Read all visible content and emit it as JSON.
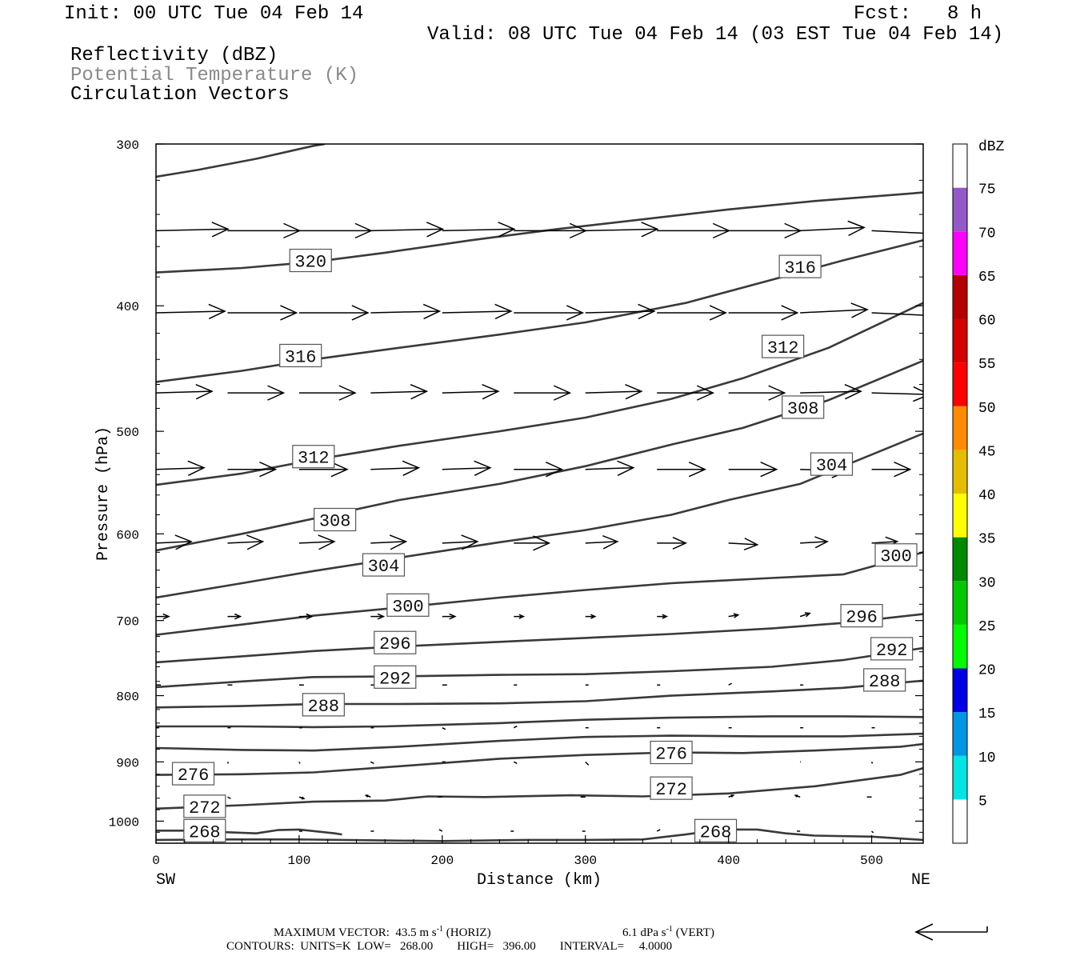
{
  "header": {
    "init": "Init: 00 UTC Tue 04 Feb 14",
    "fcst_label": "Fcst:",
    "fcst_value": "8 h",
    "valid": "Valid: 08 UTC Tue 04 Feb 14 (03 EST Tue 04 Feb 14)",
    "field1": "Reflectivity (dBZ)",
    "field2": "Potential Temperature (K)",
    "field3": "Circulation Vectors"
  },
  "footer": {
    "max_vector_label": "MAXIMUM VECTOR:",
    "max_vector_horiz": "43.5 m s",
    "horiz_exp": "-1",
    "horiz_tag": "(HORIZ)",
    "max_vector_vert": "6.1 dPa s",
    "vert_exp": "-1",
    "vert_tag": "(VERT)",
    "contours": "CONTOURS:  UNITS=K  LOW=   268.00        HIGH=   396.00        INTERVAL=     4.0000"
  },
  "colors": {
    "contour": "#3a3a3a",
    "vector": "#000000",
    "potential_temperature_label": "#8a8a8a"
  },
  "chart_data": {
    "type": "cross-section",
    "xlabel": "Distance (km)",
    "ylabel": "Pressure (hPa)",
    "xlim": [
      0,
      536
    ],
    "ylim": [
      1040,
      300
    ],
    "y_log": true,
    "x_ticks": [
      0,
      100,
      200,
      300,
      400,
      500
    ],
    "y_ticks": [
      300,
      400,
      500,
      600,
      700,
      800,
      900,
      1000
    ],
    "left_end_label": "SW",
    "right_end_label": "NE",
    "colorbar": {
      "title": "dBZ",
      "labels": [
        "5",
        "10",
        "15",
        "20",
        "25",
        "30",
        "35",
        "40",
        "45",
        "50",
        "55",
        "60",
        "65",
        "70",
        "75"
      ],
      "colors": [
        "#ffffff",
        "#00e4e4",
        "#0096e4",
        "#0000e6",
        "#00fb00",
        "#00c800",
        "#008a00",
        "#ffff00",
        "#e6bc00",
        "#ff8c00",
        "#ff0000",
        "#d40000",
        "#b40000",
        "#ff00ff",
        "#9558c8",
        "#ffffff"
      ]
    },
    "theta_contours": [
      {
        "value": 320,
        "points": [
          [
            0,
            318
          ],
          [
            30,
            314
          ],
          [
            70,
            308
          ],
          [
            110,
            301
          ],
          [
            118,
            300
          ]
        ]
      },
      {
        "value": 320,
        "points": [
          [
            0,
            377
          ],
          [
            60,
            374
          ],
          [
            110,
            370
          ],
          [
            160,
            364
          ],
          [
            220,
            356
          ],
          [
            280,
            349
          ],
          [
            340,
            343
          ],
          [
            400,
            337
          ],
          [
            460,
            332
          ],
          [
            536,
            327
          ]
        ]
      },
      {
        "value": 316,
        "points": [
          [
            0,
            458
          ],
          [
            60,
            449
          ],
          [
            110,
            440
          ],
          [
            170,
            431
          ],
          [
            240,
            421
          ],
          [
            300,
            412
          ],
          [
            370,
            398
          ],
          [
            430,
            382
          ],
          [
            480,
            369
          ],
          [
            536,
            356
          ]
        ]
      },
      {
        "value": 312,
        "points": [
          [
            0,
            550
          ],
          [
            60,
            539
          ],
          [
            110,
            526
          ],
          [
            170,
            513
          ],
          [
            240,
            500
          ],
          [
            300,
            488
          ],
          [
            360,
            472
          ],
          [
            410,
            455
          ],
          [
            470,
            431
          ],
          [
            536,
            398
          ]
        ]
      },
      {
        "value": 308,
        "points": [
          [
            0,
            618
          ],
          [
            60,
            600
          ],
          [
            110,
            584
          ],
          [
            170,
            565
          ],
          [
            240,
            549
          ],
          [
            300,
            532
          ],
          [
            360,
            512
          ],
          [
            410,
            497
          ],
          [
            470,
            473
          ],
          [
            536,
            441
          ]
        ]
      },
      {
        "value": 304,
        "points": [
          [
            0,
            672
          ],
          [
            60,
            655
          ],
          [
            110,
            641
          ],
          [
            170,
            626
          ],
          [
            240,
            609
          ],
          [
            300,
            596
          ],
          [
            360,
            580
          ],
          [
            400,
            565
          ],
          [
            450,
            549
          ],
          [
            536,
            502
          ]
        ]
      },
      {
        "value": 300,
        "points": [
          [
            0,
            718
          ],
          [
            60,
            705
          ],
          [
            110,
            694
          ],
          [
            170,
            684
          ],
          [
            240,
            672
          ],
          [
            300,
            663
          ],
          [
            360,
            655
          ],
          [
            430,
            649
          ],
          [
            480,
            645
          ],
          [
            536,
            620
          ]
        ]
      },
      {
        "value": 296,
        "points": [
          [
            0,
            754
          ],
          [
            60,
            746
          ],
          [
            110,
            739
          ],
          [
            170,
            733
          ],
          [
            240,
            727
          ],
          [
            300,
            722
          ],
          [
            360,
            717
          ],
          [
            430,
            710
          ],
          [
            480,
            703
          ],
          [
            536,
            692
          ]
        ]
      },
      {
        "value": 292,
        "points": [
          [
            0,
            788
          ],
          [
            60,
            780
          ],
          [
            110,
            774
          ],
          [
            170,
            773
          ],
          [
            240,
            771
          ],
          [
            300,
            770
          ],
          [
            360,
            766
          ],
          [
            430,
            760
          ],
          [
            480,
            751
          ],
          [
            536,
            735
          ]
        ]
      },
      {
        "value": 288,
        "points": [
          [
            0,
            817
          ],
          [
            60,
            815
          ],
          [
            110,
            812
          ],
          [
            170,
            812
          ],
          [
            240,
            811
          ],
          [
            300,
            808
          ],
          [
            360,
            800
          ],
          [
            430,
            794
          ],
          [
            480,
            789
          ],
          [
            536,
            779
          ]
        ]
      },
      {
        "value": 284,
        "points": [
          [
            0,
            845
          ],
          [
            60,
            845
          ],
          [
            110,
            846
          ],
          [
            160,
            845
          ],
          [
            240,
            840
          ],
          [
            300,
            835
          ],
          [
            360,
            832
          ],
          [
            430,
            830
          ],
          [
            480,
            830
          ],
          [
            536,
            831
          ]
        ]
      },
      {
        "value": 280,
        "points": [
          [
            0,
            878
          ],
          [
            60,
            881
          ],
          [
            110,
            882
          ],
          [
            170,
            876
          ],
          [
            240,
            867
          ],
          [
            300,
            861
          ],
          [
            360,
            859
          ],
          [
            420,
            860
          ],
          [
            480,
            860
          ],
          [
            536,
            856
          ]
        ]
      },
      {
        "value": 276,
        "points": [
          [
            0,
            921
          ],
          [
            60,
            920
          ],
          [
            110,
            917
          ],
          [
            170,
            907
          ],
          [
            240,
            895
          ],
          [
            300,
            889
          ],
          [
            360,
            885
          ],
          [
            410,
            886
          ],
          [
            460,
            882
          ],
          [
            520,
            876
          ],
          [
            536,
            872
          ]
        ]
      },
      {
        "value": 272,
        "points": [
          [
            0,
            978
          ],
          [
            60,
            972
          ],
          [
            110,
            966
          ],
          [
            160,
            964
          ],
          [
            190,
            957
          ],
          [
            230,
            958
          ],
          [
            290,
            955
          ],
          [
            340,
            957
          ],
          [
            400,
            952
          ],
          [
            460,
            940
          ],
          [
            520,
            921
          ],
          [
            536,
            910
          ]
        ]
      },
      {
        "value": 268,
        "points": [
          [
            0,
            1017
          ],
          [
            20,
            1017
          ],
          [
            50,
            1020
          ],
          [
            70,
            1022
          ],
          [
            85,
            1016
          ],
          [
            100,
            1015
          ],
          [
            125,
            1022
          ],
          [
            130,
            1024
          ]
        ]
      },
      {
        "value": 268,
        "points": [
          [
            0,
            1034
          ],
          [
            50,
            1033
          ],
          [
            100,
            1033
          ],
          [
            160,
            1035
          ],
          [
            200,
            1036
          ],
          [
            260,
            1034
          ],
          [
            300,
            1034
          ],
          [
            340,
            1033
          ],
          [
            370,
            1024
          ],
          [
            395,
            1015
          ],
          [
            420,
            1015
          ],
          [
            440,
            1022
          ],
          [
            460,
            1026
          ],
          [
            500,
            1028
          ],
          [
            536,
            1034
          ]
        ]
      }
    ],
    "contour_labels": [
      {
        "text": "320",
        "x": 108,
        "p": 369
      },
      {
        "text": "316",
        "x": 450,
        "p": 373
      },
      {
        "text": "316",
        "x": 101,
        "p": 437
      },
      {
        "text": "312",
        "x": 438,
        "p": 430
      },
      {
        "text": "312",
        "x": 110,
        "p": 523
      },
      {
        "text": "308",
        "x": 452,
        "p": 479
      },
      {
        "text": "304",
        "x": 472,
        "p": 530
      },
      {
        "text": "308",
        "x": 125,
        "p": 585
      },
      {
        "text": "300",
        "x": 517,
        "p": 623
      },
      {
        "text": "304",
        "x": 159,
        "p": 634
      },
      {
        "text": "300",
        "x": 176,
        "p": 681
      },
      {
        "text": "296",
        "x": 493,
        "p": 694
      },
      {
        "text": "296",
        "x": 167,
        "p": 728
      },
      {
        "text": "292",
        "x": 514,
        "p": 736
      },
      {
        "text": "292",
        "x": 167,
        "p": 774
      },
      {
        "text": "288",
        "x": 509,
        "p": 778
      },
      {
        "text": "288",
        "x": 117,
        "p": 813
      },
      {
        "text": "276",
        "x": 360,
        "p": 885
      },
      {
        "text": "276",
        "x": 26,
        "p": 919
      },
      {
        "text": "272",
        "x": 360,
        "p": 943
      },
      {
        "text": "272",
        "x": 34,
        "p": 974
      },
      {
        "text": "268",
        "x": 34,
        "p": 1017
      },
      {
        "text": "268",
        "x": 391,
        "p": 1017
      }
    ],
    "vectors": [
      {
        "p": 350,
        "x": [
          0,
          50,
          100,
          150,
          200,
          250,
          300,
          350,
          400,
          450,
          500
        ],
        "u": [
          45,
          45,
          45,
          45,
          45,
          45,
          45,
          45,
          45,
          40,
          42
        ],
        "w": [
          -1,
          0,
          0,
          -1,
          -1,
          0,
          -1,
          0,
          0,
          -2,
          2
        ]
      },
      {
        "p": 405,
        "x": [
          0,
          50,
          100,
          150,
          200,
          250,
          300,
          350,
          400,
          450,
          500
        ],
        "u": [
          43,
          43,
          43,
          43,
          43,
          43,
          43,
          43,
          43,
          42,
          43
        ],
        "w": [
          -1,
          0,
          0,
          -1,
          -1,
          0,
          -1,
          0,
          0,
          -2,
          2
        ]
      },
      {
        "p": 467,
        "x": [
          0,
          50,
          100,
          150,
          200,
          250,
          300,
          350,
          400,
          450,
          500
        ],
        "u": [
          35,
          35,
          35,
          35,
          35,
          35,
          35,
          35,
          35,
          38,
          36
        ],
        "w": [
          -1,
          0,
          0,
          -1,
          -1,
          0,
          -1,
          0,
          0,
          -1,
          1
        ]
      },
      {
        "p": 535,
        "x": [
          0,
          50,
          100,
          150,
          200,
          250,
          300,
          350,
          400,
          450,
          500
        ],
        "u": [
          30,
          30,
          30,
          30,
          30,
          30,
          30,
          30,
          30,
          30,
          24
        ],
        "w": [
          -1,
          0,
          0,
          -1,
          -1,
          0,
          -1,
          0,
          0,
          1,
          0
        ]
      },
      {
        "p": 610,
        "x": [
          0,
          50,
          100,
          150,
          200,
          250,
          300,
          350,
          400,
          450,
          500
        ],
        "u": [
          22,
          22,
          22,
          22,
          22,
          22,
          20,
          18,
          18,
          17,
          16
        ],
        "w": [
          -1,
          -1,
          -1,
          -1,
          -1,
          0,
          -1,
          0,
          1,
          -1,
          -1
        ]
      },
      {
        "p": 695,
        "x": [
          0,
          50,
          100,
          150,
          200,
          250,
          300,
          350,
          400,
          450,
          500
        ],
        "u": [
          8,
          8,
          8,
          8,
          8,
          6,
          6,
          6,
          6,
          6,
          4
        ],
        "w": [
          0,
          0,
          0,
          0,
          0,
          0,
          0,
          0,
          -1,
          -2,
          0
        ]
      },
      {
        "p": 785,
        "x": [
          0,
          50,
          100,
          150,
          200,
          250,
          300,
          350,
          400,
          450,
          500
        ],
        "u": [
          3,
          3,
          3,
          3,
          3,
          2,
          2,
          2,
          2,
          2,
          2
        ],
        "w": [
          0,
          0,
          0,
          0,
          0,
          0,
          0,
          0,
          -1,
          0,
          0
        ]
      },
      {
        "p": 847,
        "x": [
          0,
          50,
          100,
          150,
          200,
          250,
          300,
          350,
          400,
          450,
          500
        ],
        "u": [
          2,
          2,
          2,
          2,
          2,
          2,
          2,
          2,
          2,
          2,
          2
        ],
        "w": [
          0,
          0,
          0,
          0,
          1,
          -1,
          0,
          0,
          0,
          0,
          0
        ]
      },
      {
        "p": 900,
        "x": [
          50,
          100,
          150,
          200,
          250,
          300,
          450,
          500
        ],
        "u": [
          0.5,
          0.5,
          2,
          2,
          2,
          2,
          0.5,
          0.5
        ],
        "w": [
          1,
          1,
          1,
          0,
          1,
          2,
          0,
          1
        ]
      },
      {
        "p": 958,
        "x": [
          50,
          100,
          150,
          200,
          300,
          400,
          450,
          500
        ],
        "u": [
          2,
          3,
          -3,
          -3,
          -3,
          3,
          -3,
          -3
        ],
        "w": [
          1,
          1,
          -1,
          0,
          0,
          -1,
          -1,
          0
        ]
      },
      {
        "p": 1018,
        "x": [
          100,
          150,
          200,
          250,
          300,
          350,
          450,
          500
        ],
        "u": [
          2,
          2,
          -2,
          -2,
          -2,
          2,
          -2,
          1
        ],
        "w": [
          0,
          0,
          -1,
          0,
          0,
          -1,
          0,
          1
        ]
      }
    ],
    "reference_vector": {
      "u": -43.5,
      "w": 0
    }
  }
}
